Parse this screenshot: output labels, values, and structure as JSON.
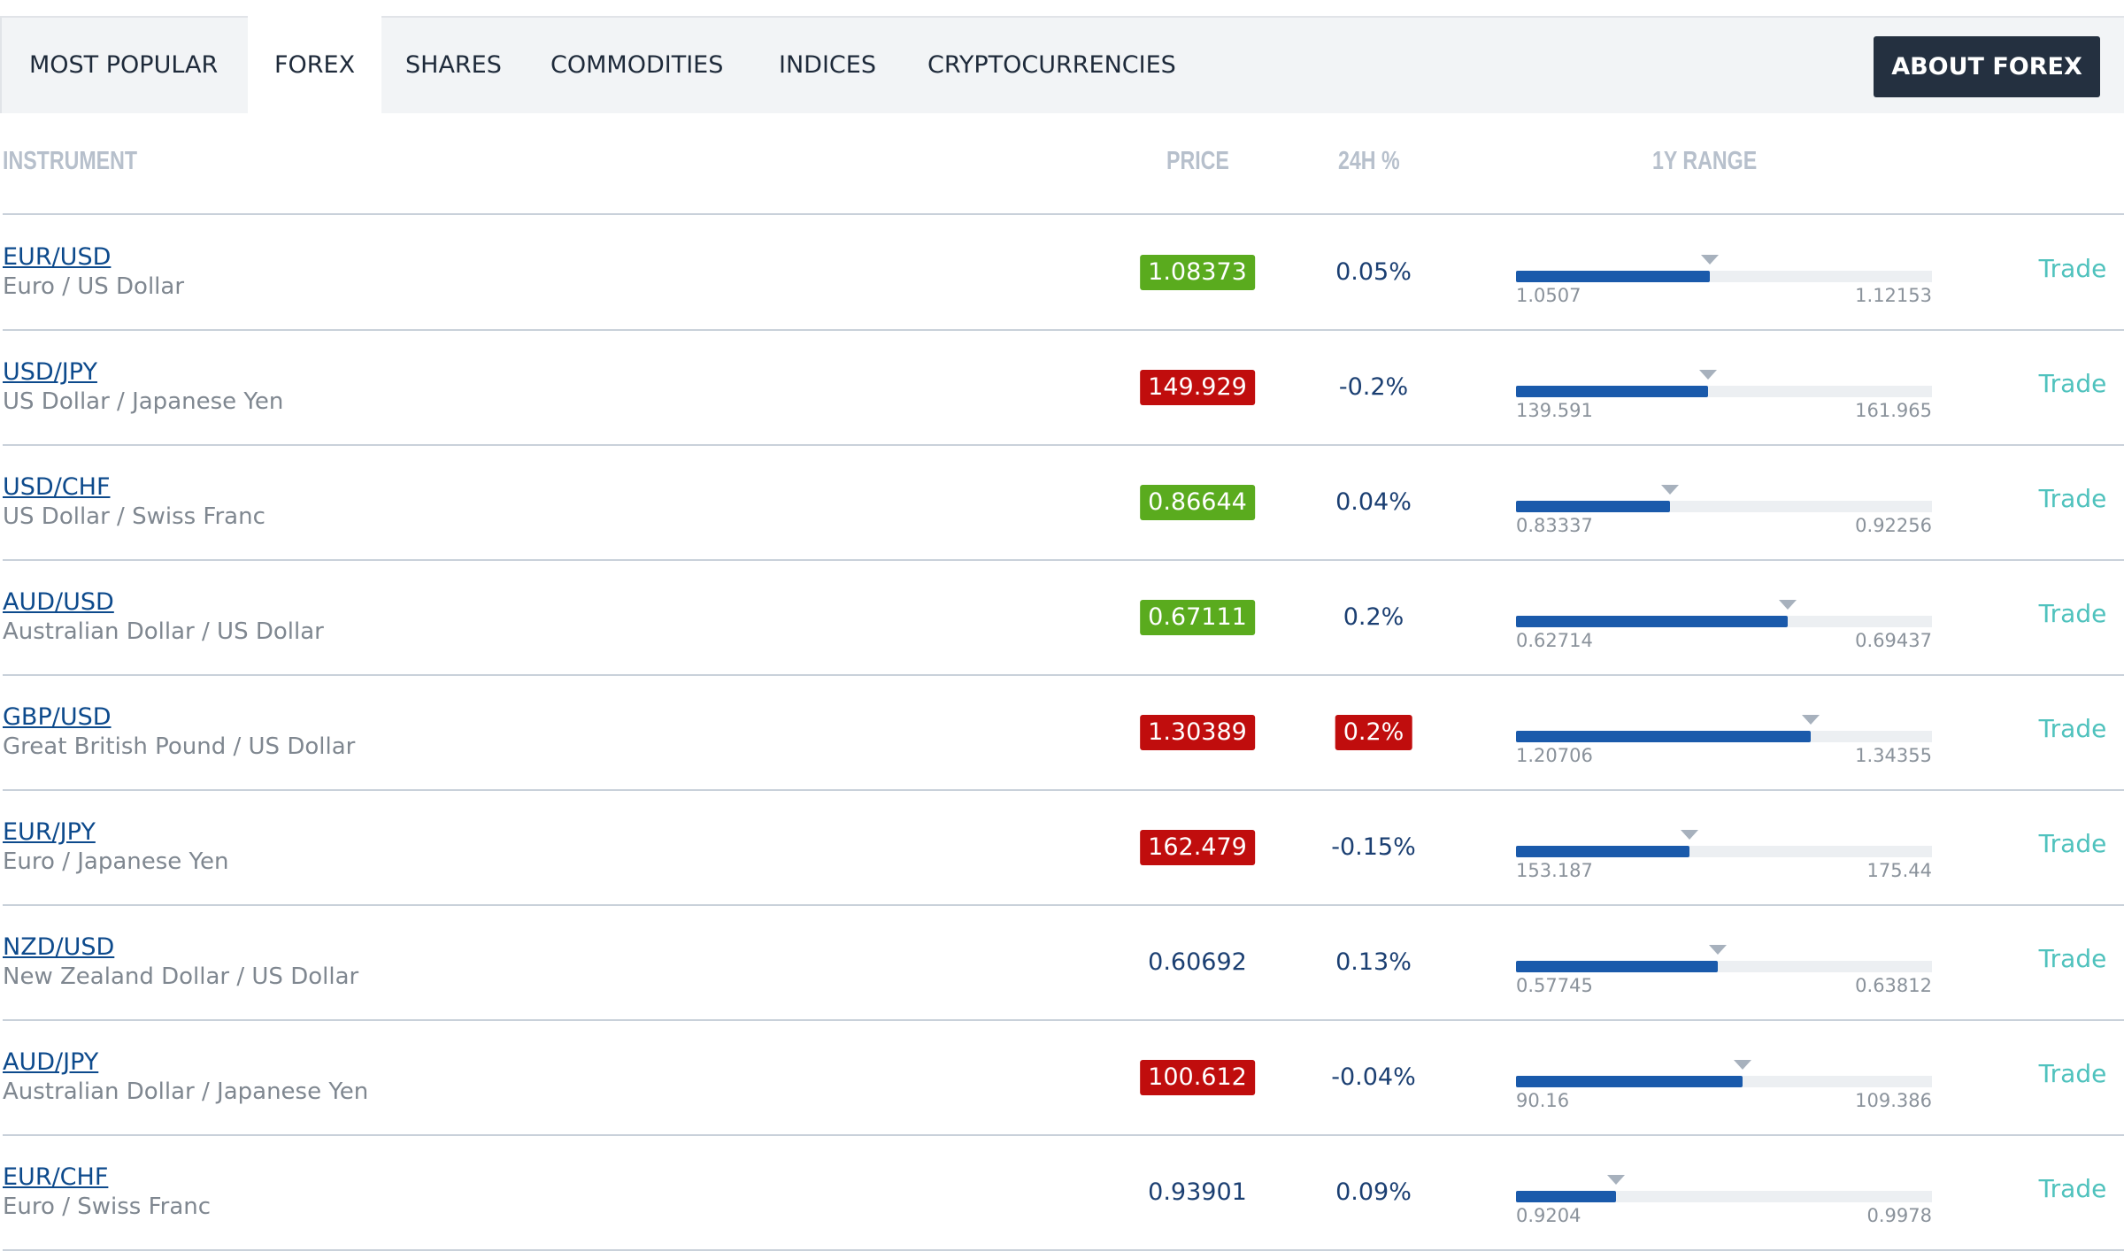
{
  "tabs": [
    "MOST POPULAR",
    "FOREX",
    "SHARES",
    "COMMODITIES",
    "INDICES",
    "CRYPTOCURRENCIES"
  ],
  "active_tab": 1,
  "button": "ABOUT FOREX",
  "columns": [
    "INSTRUMENT",
    "PRICE",
    "24H %",
    "1Y RANGE"
  ],
  "rows": [
    {
      "symbol": "EUR/USD",
      "name": "Euro / US Dollar",
      "price": 1.08373,
      "price_state": "up",
      "change": "0.05%",
      "change_state": "none",
      "low": 1.0507,
      "high": 1.12153,
      "action": "Trade"
    },
    {
      "symbol": "USD/JPY",
      "name": "US Dollar / Japanese Yen",
      "price": 149.929,
      "price_state": "down",
      "change": "-0.2%",
      "change_state": "none",
      "low": 139.591,
      "high": 161.965,
      "action": "Trade"
    },
    {
      "symbol": "USD/CHF",
      "name": "US Dollar / Swiss Franc",
      "price": 0.86644,
      "price_state": "up",
      "change": "0.04%",
      "change_state": "none",
      "low": 0.83337,
      "high": 0.92256,
      "action": "Trade"
    },
    {
      "symbol": "AUD/USD",
      "name": "Australian Dollar / US Dollar",
      "price": 0.67111,
      "price_state": "up",
      "change": "0.2%",
      "change_state": "none",
      "low": 0.62714,
      "high": 0.69437,
      "action": "Trade"
    },
    {
      "symbol": "GBP/USD",
      "name": "Great British Pound / US Dollar",
      "price": 1.30389,
      "price_state": "down",
      "change": "0.2%",
      "change_state": "down",
      "low": 1.20706,
      "high": 1.34355,
      "action": "Trade"
    },
    {
      "symbol": "EUR/JPY",
      "name": "Euro / Japanese Yen",
      "price": 162.479,
      "price_state": "down",
      "change": "-0.15%",
      "change_state": "none",
      "low": 153.187,
      "high": 175.44,
      "action": "Trade"
    },
    {
      "symbol": "NZD/USD",
      "name": "New Zealand Dollar / US Dollar",
      "price": 0.60692,
      "price_state": "none",
      "change": "0.13%",
      "change_state": "none",
      "low": 0.57745,
      "high": 0.63812,
      "action": "Trade"
    },
    {
      "symbol": "AUD/JPY",
      "name": "Australian Dollar / Japanese Yen",
      "price": 100.612,
      "price_state": "down",
      "change": "-0.04%",
      "change_state": "none",
      "low": 90.16,
      "high": 109.386,
      "action": "Trade"
    },
    {
      "symbol": "EUR/CHF",
      "name": "Euro / Swiss Franc",
      "price": 0.93901,
      "price_state": "none",
      "change": "0.09%",
      "change_state": "none",
      "low": 0.9204,
      "high": 0.9978,
      "action": "Trade"
    }
  ]
}
